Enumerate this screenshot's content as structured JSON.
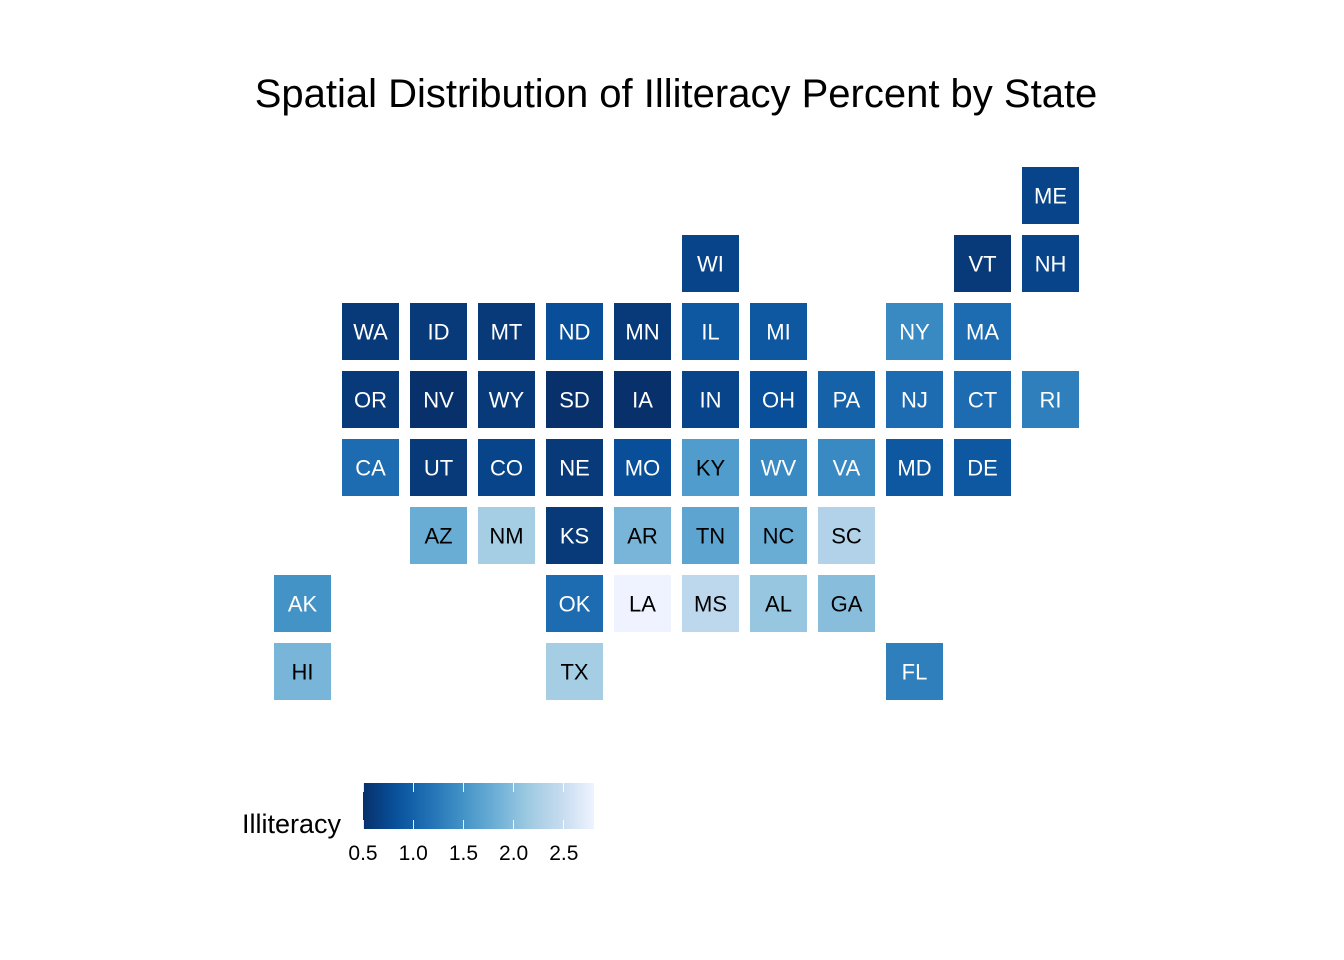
{
  "chart_data": {
    "type": "heatmap",
    "title": "Spatial Distribution of Illiteracy Percent by State",
    "colors": {
      "low": "#08306b",
      "high": "#eef3ff",
      "text_dark": "#000000",
      "text_light": "#ffffff"
    },
    "legend": {
      "title": "Illiteracy",
      "placement": "bottom-left",
      "range": [
        0.5,
        2.8
      ],
      "ticks": [
        0.5,
        1.0,
        1.5,
        2.0,
        2.5
      ],
      "tick_labels": [
        "0.5",
        "1.0",
        "1.5",
        "2.0",
        "2.5"
      ]
    },
    "tiles": [
      {
        "state": "ME",
        "col": 11,
        "row": 0,
        "illiteracy": 0.7
      },
      {
        "state": "WI",
        "col": 6,
        "row": 1,
        "illiteracy": 0.7
      },
      {
        "state": "VT",
        "col": 10,
        "row": 1,
        "illiteracy": 0.6
      },
      {
        "state": "NH",
        "col": 11,
        "row": 1,
        "illiteracy": 0.7
      },
      {
        "state": "WA",
        "col": 1,
        "row": 2,
        "illiteracy": 0.6
      },
      {
        "state": "ID",
        "col": 2,
        "row": 2,
        "illiteracy": 0.6
      },
      {
        "state": "MT",
        "col": 3,
        "row": 2,
        "illiteracy": 0.6
      },
      {
        "state": "ND",
        "col": 4,
        "row": 2,
        "illiteracy": 0.8
      },
      {
        "state": "MN",
        "col": 5,
        "row": 2,
        "illiteracy": 0.6
      },
      {
        "state": "IL",
        "col": 6,
        "row": 2,
        "illiteracy": 0.9
      },
      {
        "state": "MI",
        "col": 7,
        "row": 2,
        "illiteracy": 0.9
      },
      {
        "state": "NY",
        "col": 9,
        "row": 2,
        "illiteracy": 1.4
      },
      {
        "state": "MA",
        "col": 10,
        "row": 2,
        "illiteracy": 1.1
      },
      {
        "state": "OR",
        "col": 1,
        "row": 3,
        "illiteracy": 0.6
      },
      {
        "state": "NV",
        "col": 2,
        "row": 3,
        "illiteracy": 0.5
      },
      {
        "state": "WY",
        "col": 3,
        "row": 3,
        "illiteracy": 0.6
      },
      {
        "state": "SD",
        "col": 4,
        "row": 3,
        "illiteracy": 0.5
      },
      {
        "state": "IA",
        "col": 5,
        "row": 3,
        "illiteracy": 0.5
      },
      {
        "state": "IN",
        "col": 6,
        "row": 3,
        "illiteracy": 0.7
      },
      {
        "state": "OH",
        "col": 7,
        "row": 3,
        "illiteracy": 0.8
      },
      {
        "state": "PA",
        "col": 8,
        "row": 3,
        "illiteracy": 1.0
      },
      {
        "state": "NJ",
        "col": 9,
        "row": 3,
        "illiteracy": 1.1
      },
      {
        "state": "CT",
        "col": 10,
        "row": 3,
        "illiteracy": 1.1
      },
      {
        "state": "RI",
        "col": 11,
        "row": 3,
        "illiteracy": 1.3
      },
      {
        "state": "CA",
        "col": 1,
        "row": 4,
        "illiteracy": 1.1
      },
      {
        "state": "UT",
        "col": 2,
        "row": 4,
        "illiteracy": 0.6
      },
      {
        "state": "CO",
        "col": 3,
        "row": 4,
        "illiteracy": 0.7
      },
      {
        "state": "NE",
        "col": 4,
        "row": 4,
        "illiteracy": 0.6
      },
      {
        "state": "MO",
        "col": 5,
        "row": 4,
        "illiteracy": 0.8
      },
      {
        "state": "KY",
        "col": 6,
        "row": 4,
        "illiteracy": 1.6
      },
      {
        "state": "WV",
        "col": 7,
        "row": 4,
        "illiteracy": 1.4
      },
      {
        "state": "VA",
        "col": 8,
        "row": 4,
        "illiteracy": 1.4
      },
      {
        "state": "MD",
        "col": 9,
        "row": 4,
        "illiteracy": 0.9
      },
      {
        "state": "DE",
        "col": 10,
        "row": 4,
        "illiteracy": 0.9
      },
      {
        "state": "AZ",
        "col": 2,
        "row": 5,
        "illiteracy": 1.8
      },
      {
        "state": "NM",
        "col": 3,
        "row": 5,
        "illiteracy": 2.2
      },
      {
        "state": "KS",
        "col": 4,
        "row": 5,
        "illiteracy": 0.6
      },
      {
        "state": "AR",
        "col": 5,
        "row": 5,
        "illiteracy": 1.9
      },
      {
        "state": "TN",
        "col": 6,
        "row": 5,
        "illiteracy": 1.7
      },
      {
        "state": "NC",
        "col": 7,
        "row": 5,
        "illiteracy": 1.8
      },
      {
        "state": "SC",
        "col": 8,
        "row": 5,
        "illiteracy": 2.3
      },
      {
        "state": "AK",
        "col": 0,
        "row": 6,
        "illiteracy": 1.5
      },
      {
        "state": "OK",
        "col": 4,
        "row": 6,
        "illiteracy": 1.1
      },
      {
        "state": "LA",
        "col": 5,
        "row": 6,
        "illiteracy": 2.8
      },
      {
        "state": "MS",
        "col": 6,
        "row": 6,
        "illiteracy": 2.4
      },
      {
        "state": "AL",
        "col": 7,
        "row": 6,
        "illiteracy": 2.1
      },
      {
        "state": "GA",
        "col": 8,
        "row": 6,
        "illiteracy": 2.0
      },
      {
        "state": "HI",
        "col": 0,
        "row": 7,
        "illiteracy": 1.9
      },
      {
        "state": "TX",
        "col": 4,
        "row": 7,
        "illiteracy": 2.2
      },
      {
        "state": "FL",
        "col": 9,
        "row": 7,
        "illiteracy": 1.3
      }
    ]
  }
}
